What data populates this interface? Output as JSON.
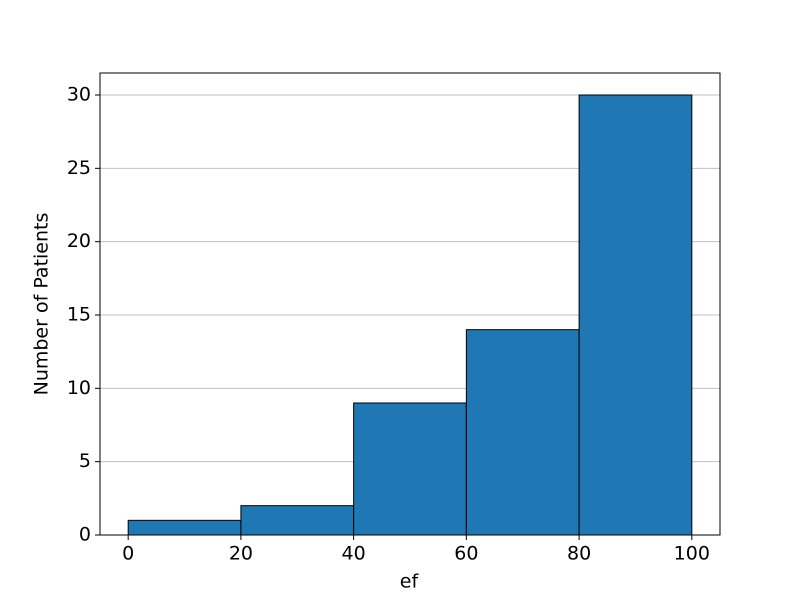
{
  "chart_data": {
    "type": "histogram",
    "x_label": "ef",
    "y_label": "Number of Patients",
    "bins": [
      0,
      20,
      40,
      60,
      80,
      100
    ],
    "values": [
      1,
      2,
      9,
      14,
      30
    ],
    "color": "#1f77b4",
    "edgecolor": "#000000",
    "xlim": [
      -5,
      105
    ],
    "xticks": [
      0,
      20,
      40,
      60,
      80,
      100
    ],
    "ylim": [
      0,
      31.5
    ],
    "yticks": [
      0,
      5,
      10,
      15,
      20,
      25,
      30
    ],
    "grid": "y"
  }
}
